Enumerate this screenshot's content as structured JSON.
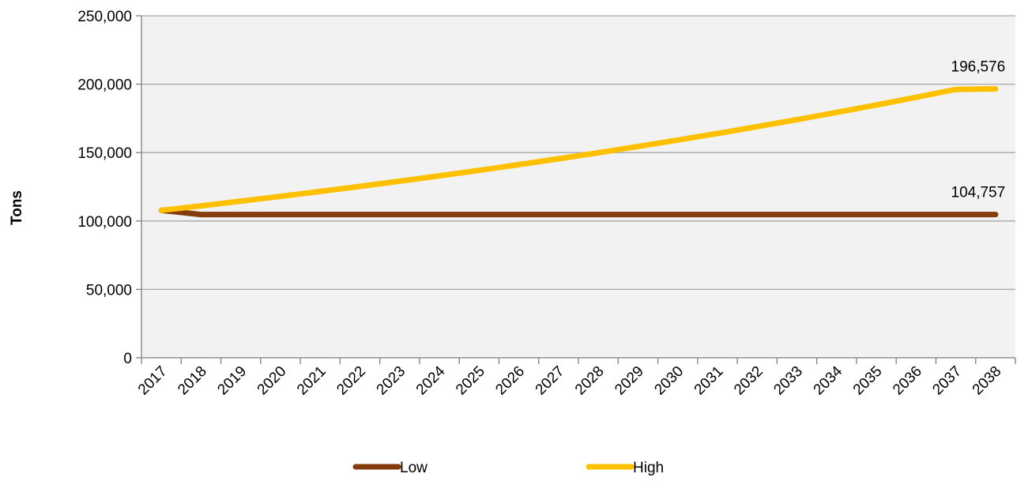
{
  "chart_data": {
    "type": "line",
    "ylabel": "Tons",
    "xlabel": "",
    "title": "",
    "ylim": [
      0,
      250000
    ],
    "yticks": [
      0,
      50000,
      100000,
      150000,
      200000,
      250000
    ],
    "ytick_labels": [
      "0",
      "50,000",
      "100,000",
      "150,000",
      "200,000",
      "250,000"
    ],
    "categories": [
      "2017",
      "2018",
      "2019",
      "2020",
      "2021",
      "2022",
      "2023",
      "2024",
      "2025",
      "2026",
      "2027",
      "2028",
      "2029",
      "2030",
      "2031",
      "2032",
      "2033",
      "2034",
      "2035",
      "2036",
      "2037",
      "2038"
    ],
    "series": [
      {
        "name": "Low",
        "color": "#843C0C",
        "values": [
          107800,
          104757,
          104757,
          104757,
          104757,
          104757,
          104757,
          104757,
          104757,
          104757,
          104757,
          104757,
          104757,
          104757,
          104757,
          104757,
          104757,
          104757,
          104757,
          104757,
          104757,
          104757
        ],
        "end_label": "104,757"
      },
      {
        "name": "High",
        "color": "#FFC000",
        "values": [
          107800,
          111100,
          114500,
          118000,
          121600,
          125300,
          129100,
          133000,
          137000,
          141200,
          145500,
          149900,
          154500,
          159200,
          164000,
          169000,
          174100,
          179400,
          184800,
          190400,
          196200,
          196576
        ],
        "end_label": "196,576"
      }
    ],
    "grid": true,
    "legend": "bottom",
    "plot_background": "#F2F2F2",
    "grid_color": "#A6A6A6"
  }
}
